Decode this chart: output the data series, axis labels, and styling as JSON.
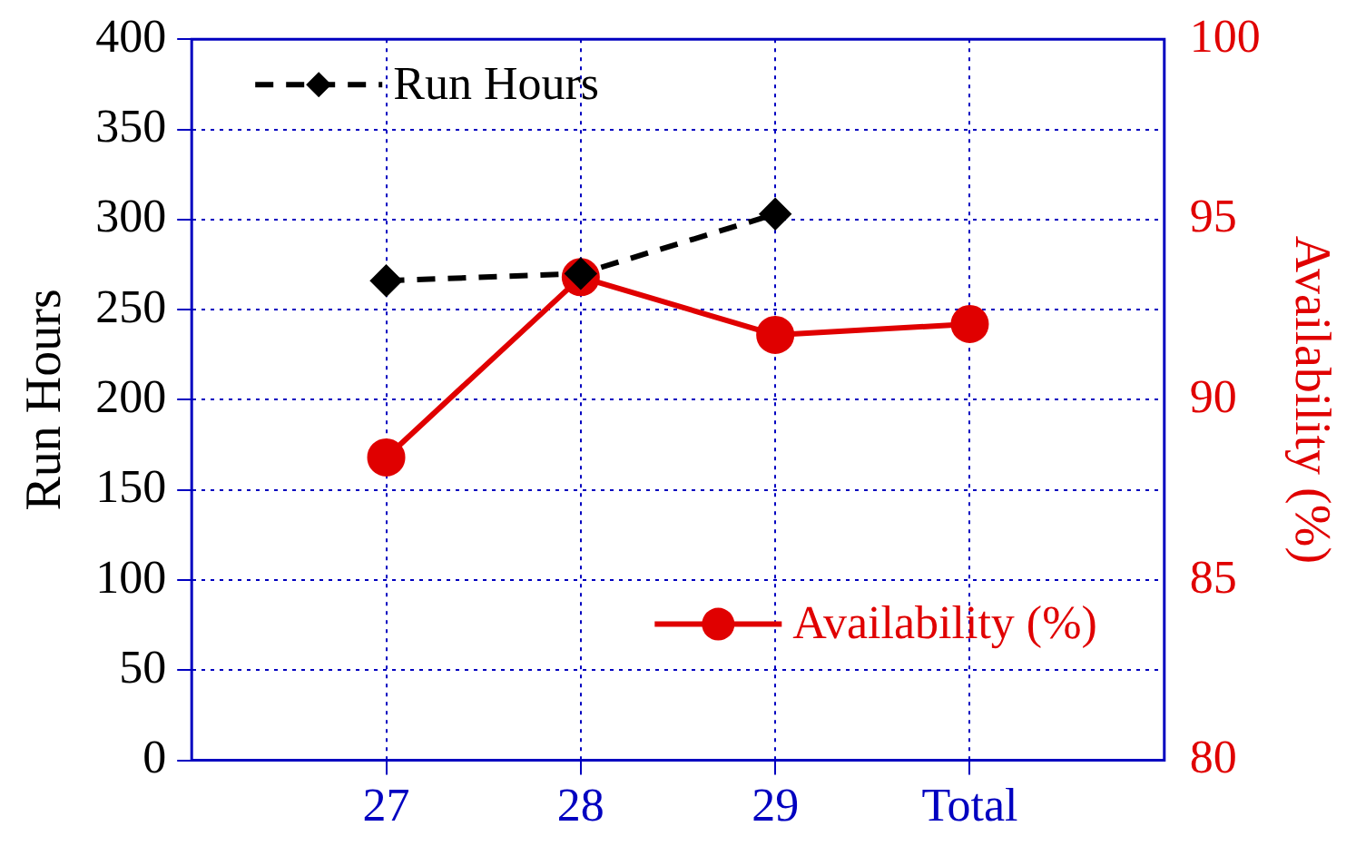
{
  "chart_data": {
    "type": "line",
    "categories": [
      "27",
      "28",
      "29",
      "Total"
    ],
    "ylabel": "Run Hours",
    "y2label": "Availability (%)",
    "ylim": [
      0,
      400
    ],
    "yticks": [
      0,
      50,
      100,
      150,
      200,
      250,
      300,
      350,
      400
    ],
    "y2lim": [
      80,
      100
    ],
    "y2ticks": [
      80,
      85,
      90,
      95,
      100
    ],
    "series": [
      {
        "name": "Run Hours",
        "color": "#000000",
        "values": [
          266,
          270,
          303,
          null
        ],
        "line_style": "dashed",
        "marker": "diamond"
      },
      {
        "name": "Availability (%)",
        "color": "#e00000",
        "values": [
          88.4,
          93.4,
          91.8,
          92.1
        ],
        "axis": "y2",
        "line_style": "solid",
        "marker": "circle"
      }
    ],
    "grid": true,
    "legend": "top left"
  }
}
